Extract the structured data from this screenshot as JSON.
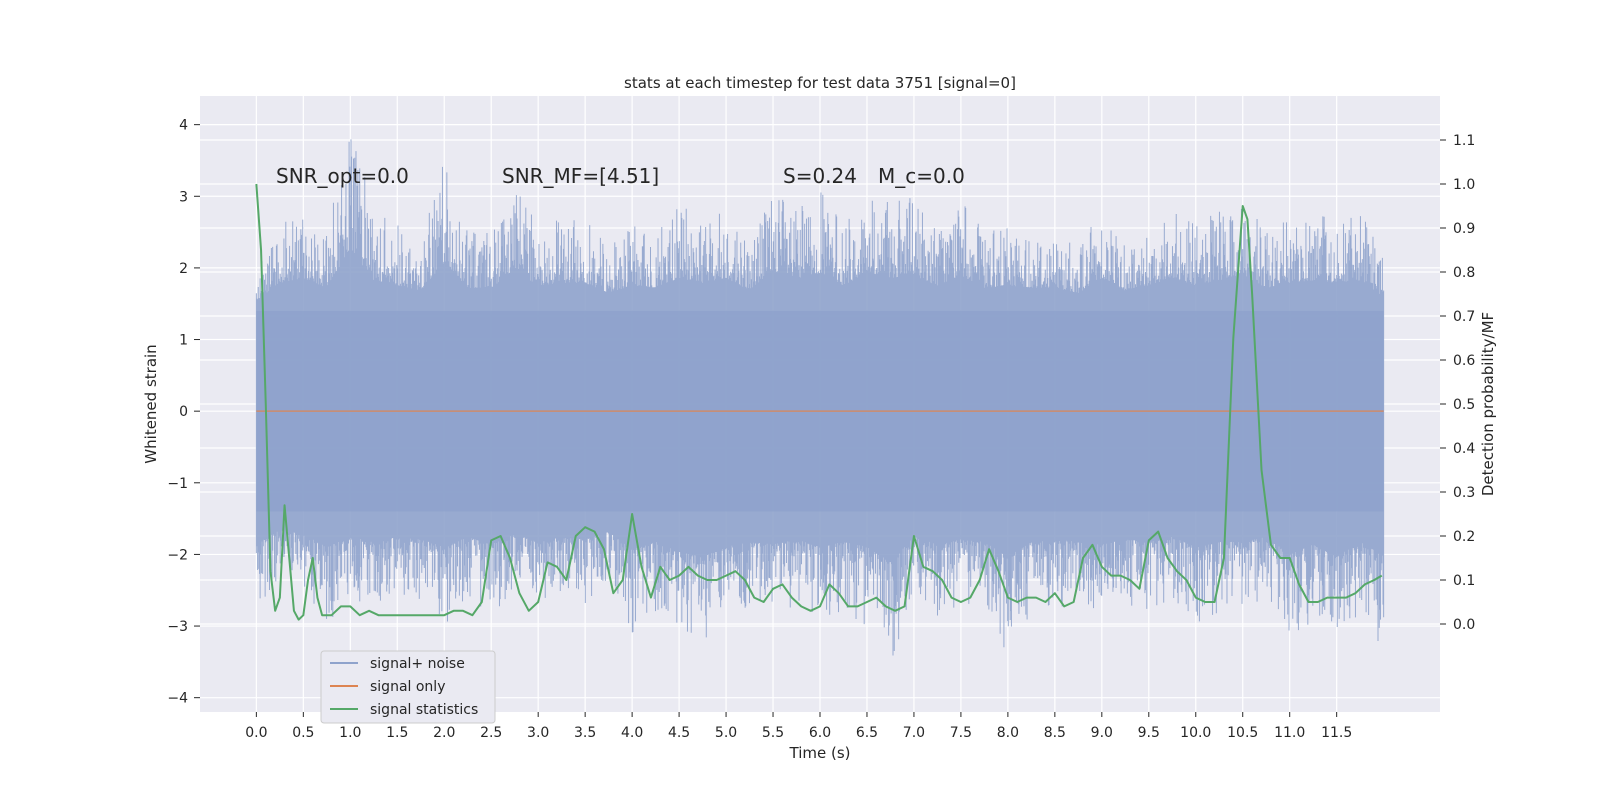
{
  "chart_data": {
    "type": "line",
    "title": "stats at each timestep for test data 3751 [signal=0]",
    "xlabel": "Time (s)",
    "ylabel": "Whitened strain",
    "ylabel_right": "Detection probability/MF",
    "xlim": [
      -0.6,
      12.6
    ],
    "ylim": [
      -4.2,
      4.4
    ],
    "ylim_right": [
      -0.2,
      1.2
    ],
    "x_ticks": [
      0.0,
      0.5,
      1.0,
      1.5,
      2.0,
      2.5,
      3.0,
      3.5,
      4.0,
      4.5,
      5.0,
      5.5,
      6.0,
      6.5,
      7.0,
      7.5,
      8.0,
      8.5,
      9.0,
      9.5,
      10.0,
      10.5,
      11.0,
      11.5
    ],
    "x_tick_labels": [
      "0.0",
      "0.5",
      "1.0",
      "1.5",
      "2.0",
      "2.5",
      "3.0",
      "3.5",
      "4.0",
      "4.5",
      "5.0",
      "5.5",
      "6.0",
      "6.5",
      "7.0",
      "7.5",
      "8.0",
      "8.5",
      "9.0",
      "9.5",
      "10.0",
      "10.5",
      "11.0",
      "11.5"
    ],
    "y_ticks": [
      -4,
      -3,
      -2,
      -1,
      0,
      1,
      2,
      3,
      4
    ],
    "y_tick_labels": [
      "−4",
      "−3",
      "−2",
      "−1",
      "0",
      "1",
      "2",
      "3",
      "4"
    ],
    "y_ticks_right": [
      0.0,
      0.1,
      0.2,
      0.3,
      0.4,
      0.5,
      0.6,
      0.7,
      0.8,
      0.9,
      1.0,
      1.1
    ],
    "y_tick_labels_right": [
      "0.0",
      "0.1",
      "0.2",
      "0.3",
      "0.4",
      "0.5",
      "0.6",
      "0.7",
      "0.8",
      "0.9",
      "1.0",
      "1.1"
    ],
    "grid": true,
    "legend_position": "lower-left",
    "annotations": [
      "SNR_opt=0.0",
      "SNR_MF=[4.51]",
      "S=0.24",
      "M_c=0.0"
    ],
    "series": [
      {
        "name": "signal+ noise",
        "axis": "left",
        "color": "#8fa3cc",
        "kind": "noise",
        "x_range": [
          0.0,
          12.0
        ],
        "core_band": [
          -1.4,
          1.4
        ],
        "x_peak": [
          0.0,
          0.25,
          0.5,
          0.75,
          1.0,
          1.25,
          1.5,
          1.75,
          2.0,
          2.25,
          2.5,
          2.75,
          3.0,
          3.25,
          3.5,
          3.75,
          4.0,
          4.25,
          4.5,
          4.75,
          5.0,
          5.25,
          5.5,
          5.75,
          6.0,
          6.25,
          6.5,
          6.75,
          7.0,
          7.25,
          7.5,
          7.75,
          8.0,
          8.25,
          8.5,
          8.75,
          9.0,
          9.25,
          9.5,
          9.75,
          10.0,
          10.25,
          10.5,
          10.75,
          11.0,
          11.25,
          11.5,
          11.75,
          11.98
        ],
        "upper_peak": [
          2.0,
          2.7,
          2.9,
          2.5,
          4.1,
          2.8,
          2.6,
          2.4,
          3.5,
          2.5,
          2.5,
          3.2,
          2.6,
          2.7,
          2.7,
          2.3,
          2.6,
          2.5,
          2.9,
          2.7,
          2.9,
          2.4,
          3.2,
          2.8,
          3.1,
          2.6,
          3.1,
          2.9,
          3.0,
          2.6,
          3.0,
          2.5,
          2.6,
          2.5,
          2.5,
          2.3,
          2.9,
          2.4,
          2.6,
          2.9,
          2.6,
          2.8,
          3.0,
          2.5,
          2.7,
          2.8,
          2.7,
          2.8,
          2.2
        ],
        "lower_peak": [
          -2.9,
          -2.3,
          -2.5,
          -3.0,
          -2.6,
          -2.8,
          -2.6,
          -2.7,
          -3.0,
          -2.6,
          -2.9,
          -2.5,
          -2.8,
          -2.6,
          -2.7,
          -2.4,
          -3.1,
          -2.8,
          -3.2,
          -3.4,
          -3.0,
          -2.8,
          -2.9,
          -2.7,
          -3.0,
          -2.8,
          -3.0,
          -3.6,
          -2.6,
          -2.9,
          -2.7,
          -2.8,
          -3.4,
          -2.8,
          -2.7,
          -2.8,
          -2.9,
          -2.7,
          -2.8,
          -2.6,
          -3.0,
          -2.8,
          -2.8,
          -2.6,
          -3.3,
          -2.9,
          -3.4,
          -2.8,
          -3.3
        ]
      },
      {
        "name": "signal only",
        "axis": "left",
        "color": "#dd8452",
        "x": [
          0.0,
          12.0
        ],
        "y": [
          0.0,
          0.0
        ]
      },
      {
        "name": "signal statistics",
        "axis": "right",
        "color": "#55a868",
        "x": [
          0.0,
          0.05,
          0.1,
          0.15,
          0.2,
          0.25,
          0.3,
          0.35,
          0.4,
          0.45,
          0.5,
          0.55,
          0.6,
          0.65,
          0.7,
          0.75,
          0.8,
          0.9,
          1.0,
          1.1,
          1.2,
          1.3,
          1.4,
          1.5,
          1.6,
          1.7,
          1.8,
          1.9,
          2.0,
          2.1,
          2.2,
          2.3,
          2.4,
          2.5,
          2.6,
          2.7,
          2.8,
          2.9,
          3.0,
          3.1,
          3.2,
          3.3,
          3.4,
          3.5,
          3.6,
          3.7,
          3.8,
          3.9,
          4.0,
          4.1,
          4.2,
          4.3,
          4.4,
          4.5,
          4.6,
          4.7,
          4.8,
          4.9,
          5.0,
          5.1,
          5.2,
          5.3,
          5.4,
          5.5,
          5.6,
          5.7,
          5.8,
          5.9,
          6.0,
          6.1,
          6.2,
          6.3,
          6.4,
          6.5,
          6.6,
          6.7,
          6.8,
          6.9,
          7.0,
          7.1,
          7.2,
          7.3,
          7.4,
          7.5,
          7.6,
          7.7,
          7.8,
          7.9,
          8.0,
          8.1,
          8.2,
          8.3,
          8.4,
          8.5,
          8.6,
          8.7,
          8.8,
          8.9,
          9.0,
          9.1,
          9.2,
          9.3,
          9.4,
          9.5,
          9.6,
          9.7,
          9.8,
          9.9,
          10.0,
          10.1,
          10.2,
          10.3,
          10.4,
          10.5,
          10.55,
          10.6,
          10.7,
          10.8,
          10.9,
          11.0,
          11.1,
          11.2,
          11.3,
          11.4,
          11.5,
          11.6,
          11.7,
          11.8,
          11.9,
          11.98
        ],
        "y": [
          1.0,
          0.85,
          0.5,
          0.12,
          0.03,
          0.06,
          0.27,
          0.15,
          0.03,
          0.01,
          0.02,
          0.1,
          0.15,
          0.06,
          0.02,
          0.02,
          0.02,
          0.04,
          0.04,
          0.02,
          0.03,
          0.02,
          0.02,
          0.02,
          0.02,
          0.02,
          0.02,
          0.02,
          0.02,
          0.03,
          0.03,
          0.02,
          0.05,
          0.19,
          0.2,
          0.15,
          0.07,
          0.03,
          0.05,
          0.14,
          0.13,
          0.1,
          0.2,
          0.22,
          0.21,
          0.17,
          0.07,
          0.1,
          0.25,
          0.13,
          0.06,
          0.13,
          0.1,
          0.11,
          0.13,
          0.11,
          0.1,
          0.1,
          0.11,
          0.12,
          0.1,
          0.06,
          0.05,
          0.08,
          0.09,
          0.06,
          0.04,
          0.03,
          0.04,
          0.09,
          0.07,
          0.04,
          0.04,
          0.05,
          0.06,
          0.04,
          0.03,
          0.04,
          0.2,
          0.13,
          0.12,
          0.1,
          0.06,
          0.05,
          0.06,
          0.1,
          0.17,
          0.12,
          0.06,
          0.05,
          0.06,
          0.06,
          0.05,
          0.07,
          0.04,
          0.05,
          0.15,
          0.18,
          0.13,
          0.11,
          0.11,
          0.1,
          0.08,
          0.19,
          0.21,
          0.15,
          0.12,
          0.1,
          0.06,
          0.05,
          0.05,
          0.15,
          0.65,
          0.95,
          0.92,
          0.75,
          0.35,
          0.18,
          0.15,
          0.15,
          0.09,
          0.05,
          0.05,
          0.06,
          0.06,
          0.06,
          0.07,
          0.09,
          0.1,
          0.11
        ]
      }
    ]
  }
}
